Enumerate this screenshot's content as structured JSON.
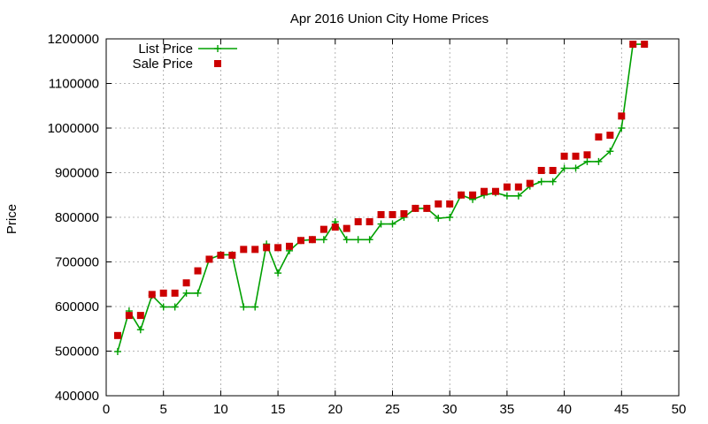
{
  "chart_data": {
    "type": "line",
    "title": "Apr 2016 Union City Home Prices",
    "ylabel": "Price",
    "xlabel": "",
    "xlim": [
      0,
      50
    ],
    "ylim": [
      400000,
      1200000
    ],
    "xticks": [
      0,
      5,
      10,
      15,
      20,
      25,
      30,
      35,
      40,
      45,
      50
    ],
    "yticks": [
      400000,
      500000,
      600000,
      700000,
      800000,
      900000,
      1000000,
      1100000,
      1200000
    ],
    "xtick_labels": [
      "0",
      "5",
      "10",
      "15",
      "20",
      "25",
      "30",
      "35",
      "40",
      "45",
      "50"
    ],
    "ytick_labels": [
      "400000",
      "500000",
      "600000",
      "700000",
      "800000",
      "900000",
      "1000000",
      "1100000",
      "1200000"
    ],
    "grid": true,
    "legend_position": "top-left",
    "series": [
      {
        "name": "List Price",
        "style": "line-with-plus",
        "color": "#00a000",
        "x": [
          1,
          2,
          3,
          4,
          5,
          6,
          7,
          8,
          9,
          10,
          11,
          12,
          13,
          14,
          15,
          16,
          17,
          18,
          19,
          20,
          21,
          22,
          23,
          24,
          25,
          26,
          27,
          28,
          29,
          30,
          31,
          32,
          33,
          34,
          35,
          36,
          37,
          38,
          39,
          40,
          41,
          42,
          43,
          44,
          45,
          46,
          47
        ],
        "y": [
          499000,
          590000,
          548000,
          625000,
          599000,
          599000,
          630000,
          630000,
          706000,
          716000,
          716000,
          599000,
          599000,
          740000,
          675000,
          725000,
          748000,
          750000,
          750000,
          790000,
          750000,
          750000,
          750000,
          785000,
          785000,
          800000,
          820000,
          820000,
          798000,
          800000,
          850000,
          840000,
          850000,
          855000,
          848000,
          848000,
          870000,
          880000,
          880000,
          910000,
          910000,
          925000,
          925000,
          948000,
          1000000,
          1188000,
          1188000
        ]
      },
      {
        "name": "Sale Price",
        "style": "square-marker",
        "color": "#cc0000",
        "x": [
          1,
          2,
          3,
          4,
          5,
          6,
          7,
          8,
          9,
          10,
          11,
          12,
          13,
          14,
          15,
          16,
          17,
          18,
          19,
          20,
          21,
          22,
          23,
          24,
          25,
          26,
          27,
          28,
          29,
          30,
          31,
          32,
          33,
          34,
          35,
          36,
          37,
          38,
          39,
          40,
          41,
          42,
          43,
          44,
          45,
          46,
          47
        ],
        "y": [
          535000,
          580000,
          580000,
          627000,
          630000,
          630000,
          653000,
          680000,
          706000,
          715000,
          715000,
          728000,
          728000,
          732000,
          732000,
          735000,
          748000,
          750000,
          773000,
          778000,
          775000,
          790000,
          790000,
          806000,
          806000,
          808000,
          820000,
          820000,
          830000,
          830000,
          850000,
          850000,
          858000,
          858000,
          868000,
          868000,
          876000,
          905000,
          905000,
          937000,
          937000,
          940000,
          980000,
          984000,
          1027000,
          1188000,
          1188000
        ]
      }
    ]
  }
}
